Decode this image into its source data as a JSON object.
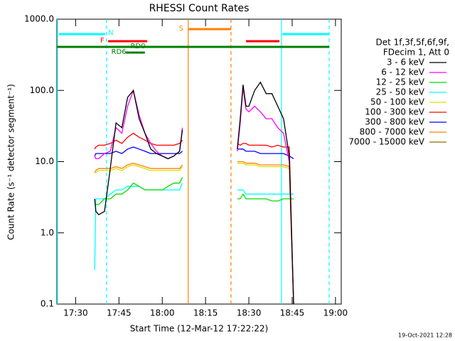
{
  "chart_data": {
    "type": "line",
    "title": "RHESSI Count Rates",
    "x_label": "Start Time (12-Mar-12 17:22:22)",
    "y_label": "Count Rate (s⁻¹ detector segment⁻¹)",
    "footer": "19-Oct-2021 12:28",
    "log_y": true,
    "xlim": [
      1043.5,
      1142
    ],
    "ylim": [
      0.1,
      1000
    ],
    "xticks": [
      {
        "value": 1050,
        "label": "17:30"
      },
      {
        "value": 1065,
        "label": "17:45"
      },
      {
        "value": 1080,
        "label": "18:00"
      },
      {
        "value": 1095,
        "label": "18:15"
      },
      {
        "value": 1110,
        "label": "18:30"
      },
      {
        "value": 1125,
        "label": "18:45"
      },
      {
        "value": 1140,
        "label": "19:00"
      }
    ],
    "yticks": [
      {
        "value": 1000,
        "label": "1000.0"
      },
      {
        "value": 100,
        "label": "100.0"
      },
      {
        "value": 10,
        "label": "10.0"
      },
      {
        "value": 1,
        "label": "1.0"
      },
      0.1
    ],
    "legend_header": [
      "Det 1f,3f,5f,6f,9f,",
      "FDecim 1, Att 0"
    ],
    "x": [
      1056.6,
      1057,
      1058,
      1060,
      1062,
      1064,
      1066,
      1068,
      1070,
      1072,
      1074,
      1076,
      1078,
      1080,
      1082,
      1084,
      1086,
      1087,
      1096,
      1106,
      1107,
      1108,
      1109,
      1110,
      1112,
      1114,
      1116,
      1118,
      1120,
      1122,
      1124,
      1125.5
    ],
    "series": [
      {
        "name": "3 - 6 keV",
        "color": "#000000",
        "values": [
          3,
          2,
          1.8,
          2,
          8,
          35,
          30,
          80,
          100,
          40,
          25,
          15,
          13,
          12,
          11,
          12,
          14,
          28,
          null,
          15,
          40,
          120,
          60,
          60,
          100,
          130,
          90,
          90,
          60,
          40,
          12,
          0.1
        ]
      },
      {
        "name": "6 - 12 keV",
        "color": "#ff00ff",
        "values": [
          12,
          11,
          11,
          13,
          14,
          30,
          25,
          60,
          100,
          45,
          25,
          18,
          14,
          12,
          11,
          12,
          14,
          30,
          null,
          14,
          35,
          110,
          55,
          50,
          60,
          50,
          40,
          40,
          30,
          25,
          10,
          0.1
        ]
      },
      {
        "name": "12 - 25 keV",
        "color": "#00dd00",
        "values": [
          2.5,
          2.5,
          2.5,
          3,
          3,
          3.5,
          3.5,
          4,
          5,
          4.5,
          4,
          4,
          4,
          4,
          4.5,
          5,
          5,
          6,
          null,
          3,
          3,
          3.5,
          3,
          3,
          3,
          3,
          3,
          2.8,
          2.8,
          3,
          3,
          3
        ]
      },
      {
        "name": "25 - 50 keV",
        "color": "#00ffff",
        "values": [
          0.3,
          3,
          3,
          3,
          3.5,
          4,
          4,
          4.5,
          4.5,
          4.5,
          4,
          4,
          4,
          4,
          4,
          4,
          4,
          5,
          null,
          4,
          4,
          4,
          3.5,
          3.5,
          3.5,
          3.5,
          3.5,
          3.5,
          3.5,
          3.5,
          3.5,
          3.5
        ]
      },
      {
        "name": "50 - 100 keV",
        "color": "#dddd00",
        "values": [
          7,
          7,
          7.5,
          7.5,
          7.5,
          8,
          7.5,
          8.5,
          9,
          8.5,
          8,
          7.5,
          7.5,
          7.5,
          7.5,
          7.5,
          7.5,
          8.5,
          null,
          9.5,
          9.5,
          9.5,
          9,
          9,
          9,
          8.5,
          8.5,
          8.5,
          8.5,
          8.5,
          8,
          0.1
        ]
      },
      {
        "name": "100 - 300 keV",
        "color": "#ff0000",
        "values": [
          15,
          16,
          17,
          17,
          18,
          20,
          18,
          22,
          25,
          22,
          20,
          18,
          17,
          17,
          17,
          17,
          18,
          20,
          null,
          18,
          17,
          18,
          18,
          17,
          17,
          17,
          17,
          16,
          17,
          16,
          16,
          0.1
        ]
      },
      {
        "name": "300 - 800 keV",
        "color": "#0000ff",
        "values": [
          12,
          13,
          13,
          13,
          13,
          14,
          13,
          15,
          16,
          15,
          14,
          13,
          13,
          13,
          13,
          13,
          13,
          14,
          null,
          15,
          15,
          15,
          14,
          14,
          14,
          13,
          13,
          13,
          13,
          13,
          12,
          11
        ]
      },
      {
        "name": "800 - 7000 keV",
        "color": "#ff8000",
        "values": [
          7,
          7.5,
          8,
          8,
          8,
          8.5,
          8,
          9,
          9.5,
          9,
          8.5,
          8,
          8,
          8,
          8,
          8,
          8,
          9,
          null,
          10,
          10,
          10,
          9.5,
          9.5,
          9.5,
          9,
          9,
          9,
          9,
          9,
          8.5,
          0.1
        ]
      },
      {
        "name": "7000 - 15000 keV",
        "color": "#8b7500",
        "values": [
          null,
          null,
          null,
          null,
          null,
          null,
          null,
          null,
          null,
          null,
          null,
          null,
          null,
          null,
          null,
          null,
          null,
          null,
          null,
          null,
          null,
          null,
          null,
          null,
          null,
          null,
          null,
          null,
          null,
          null,
          null,
          null
        ]
      }
    ],
    "flags": [
      {
        "label": "N",
        "color": "#00ffff",
        "intervals": [
          [
            1044.2,
            1060.2
          ],
          [
            1121.6,
            1137.8
          ]
        ]
      },
      {
        "label": "F",
        "color": "#ff0000",
        "intervals": [
          [
            1061.2,
            1074.8
          ],
          [
            1109,
            1120.6
          ]
        ]
      },
      {
        "label": "RD0",
        "color": "#008000",
        "intervals": [
          [
            1043.5,
            1137.8
          ]
        ]
      },
      {
        "label": "RD6",
        "color": "#008000",
        "intervals": [
          [
            1067.4,
            1074
          ]
        ]
      },
      {
        "label": "S",
        "color": "#ff8000",
        "intervals": [
          [
            1089,
            1103.8
          ]
        ]
      }
    ],
    "markers": [
      {
        "x": 1043.7,
        "color": "#00ffff",
        "dashed": false
      },
      {
        "x": 1060.7,
        "color": "#00ffff",
        "dashed": true
      },
      {
        "x": 1089,
        "color": "#ff8000",
        "dashed": false
      },
      {
        "x": 1103.8,
        "color": "#ff8000",
        "dashed": true
      },
      {
        "x": 1121.3,
        "color": "#00ffff",
        "dashed": false
      },
      {
        "x": 1137.8,
        "color": "#00ffff",
        "dashed": true
      }
    ]
  }
}
